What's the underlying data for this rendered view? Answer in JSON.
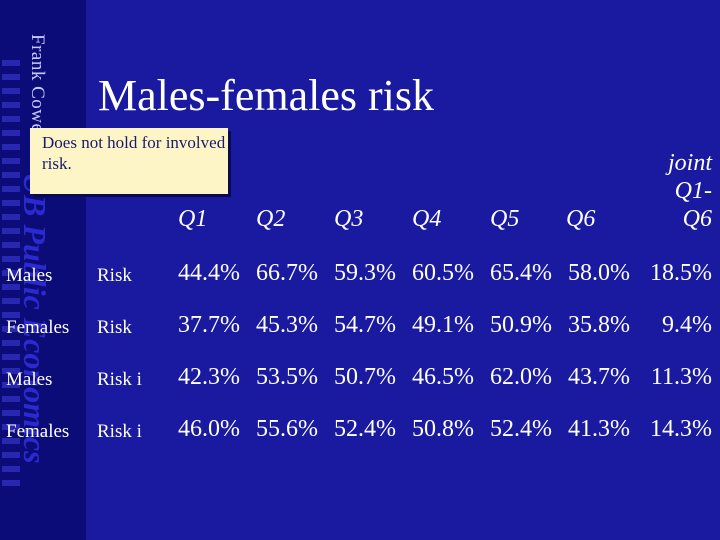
{
  "sidebar": {
    "author": "Frank Cowell:",
    "course": "UB Public Economics"
  },
  "slide": {
    "title": "Males-females risk",
    "note": "Does not hold for involved risk."
  },
  "table": {
    "headers": [
      "Q1",
      "Q2",
      "Q3",
      "Q4",
      "Q5",
      "Q6"
    ],
    "joint_header": [
      "joint",
      "Q1-",
      "Q6"
    ],
    "rows": [
      {
        "group": "Males",
        "measure": "Risk",
        "values": [
          "44.4%",
          "66.7%",
          "59.3%",
          "60.5%",
          "65.4%",
          "58.0%",
          "18.5%"
        ]
      },
      {
        "group": "Females",
        "measure": "Risk",
        "values": [
          "37.7%",
          "45.3%",
          "54.7%",
          "49.1%",
          "50.9%",
          "35.8%",
          "9.4%"
        ]
      },
      {
        "group": "Males",
        "measure": "Risk i",
        "values": [
          "42.3%",
          "53.5%",
          "50.7%",
          "46.5%",
          "62.0%",
          "43.7%",
          "11.3%"
        ]
      },
      {
        "group": "Females",
        "measure": "Risk i",
        "values": [
          "46.0%",
          "55.6%",
          "52.4%",
          "50.8%",
          "52.4%",
          "41.3%",
          "14.3%"
        ]
      }
    ]
  }
}
